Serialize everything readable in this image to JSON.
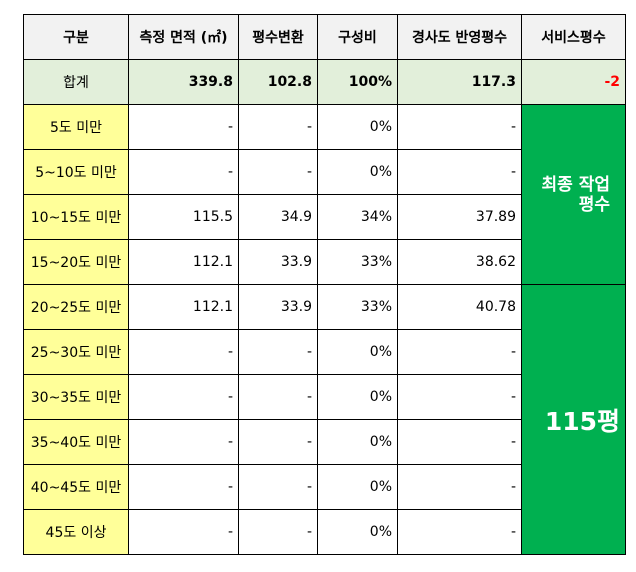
{
  "colors": {
    "header_bg": "#f2f2f2",
    "sum_bg": "#e2efda",
    "category_bg": "#ffff99",
    "service_bg": "#00b050",
    "negative_text": "#ff0000"
  },
  "headers": [
    "구분",
    "측정 면적 (㎡)",
    "평수변환",
    "구성비",
    "경사도 반영평수",
    "서비스평수"
  ],
  "total": {
    "label": "합계",
    "area": "339.8",
    "pyeong": "102.8",
    "ratio": "100%",
    "slope_pyeong": "117.3",
    "service": "-2"
  },
  "rows": [
    {
      "label": "5도 미만",
      "area": "-",
      "pyeong": "-",
      "ratio": "0%",
      "slope_pyeong": "-"
    },
    {
      "label": "5~10도 미만",
      "area": "-",
      "pyeong": "-",
      "ratio": "0%",
      "slope_pyeong": "-"
    },
    {
      "label": "10~15도 미만",
      "area": "115.5",
      "pyeong": "34.9",
      "ratio": "34%",
      "slope_pyeong": "37.89"
    },
    {
      "label": "15~20도 미만",
      "area": "112.1",
      "pyeong": "33.9",
      "ratio": "33%",
      "slope_pyeong": "38.62"
    },
    {
      "label": "20~25도 미만",
      "area": "112.1",
      "pyeong": "33.9",
      "ratio": "33%",
      "slope_pyeong": "40.78"
    },
    {
      "label": "25~30도 미만",
      "area": "-",
      "pyeong": "-",
      "ratio": "0%",
      "slope_pyeong": "-"
    },
    {
      "label": "30~35도 미만",
      "area": "-",
      "pyeong": "-",
      "ratio": "0%",
      "slope_pyeong": "-"
    },
    {
      "label": "35~40도 미만",
      "area": "-",
      "pyeong": "-",
      "ratio": "0%",
      "slope_pyeong": "-"
    },
    {
      "label": "40~45도 미만",
      "area": "-",
      "pyeong": "-",
      "ratio": "0%",
      "slope_pyeong": "-"
    },
    {
      "label": "45도 이상",
      "area": "-",
      "pyeong": "-",
      "ratio": "0%",
      "slope_pyeong": "-"
    }
  ],
  "service_box": {
    "final_label": "최종 작업 평수",
    "total_label": "115평"
  }
}
